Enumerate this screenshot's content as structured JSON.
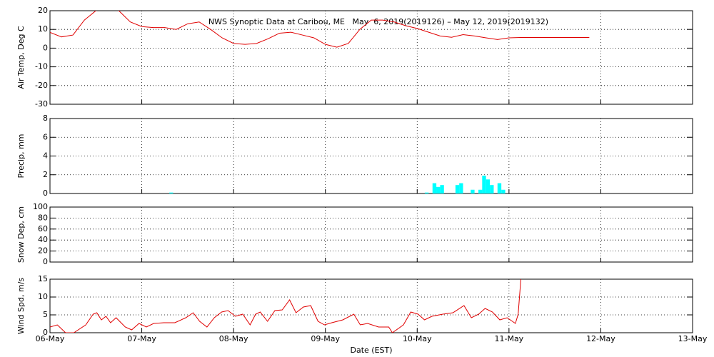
{
  "chart_data": [
    {
      "type": "line",
      "title": "NWS Synoptic Data at Caribou, ME   May  6, 2019(2019126) – May 12, 2019(2019132)",
      "y_label": "Air Temp, Deg C",
      "xlim": [
        0,
        7
      ],
      "ylim": [
        -30,
        20
      ],
      "yticks": [
        -30,
        -20,
        -10,
        0,
        10,
        20
      ],
      "grid": true,
      "series": [
        {
          "color": "#e00000",
          "x": [
            0,
            0.125,
            0.25,
            0.375,
            0.5,
            0.625,
            0.75,
            0.875,
            1,
            1.125,
            1.25,
            1.375,
            1.5,
            1.625,
            1.75,
            1.875,
            2,
            2.125,
            2.25,
            2.375,
            2.5,
            2.625,
            2.75,
            2.875,
            3,
            3.125,
            3.25,
            3.375,
            3.5,
            3.625,
            3.75,
            3.875,
            4,
            4.125,
            4.25,
            4.375,
            4.5,
            4.625,
            4.75,
            4.875,
            5,
            5.125,
            5.25,
            5.375,
            5.5,
            5.625,
            5.75,
            5.875
          ],
          "values": [
            8.4,
            6,
            7,
            15,
            20,
            22,
            20,
            14,
            11.5,
            11,
            11,
            10,
            13,
            14,
            10,
            5.5,
            2.5,
            2,
            2.5,
            5,
            8,
            8.5,
            7,
            5.5,
            2,
            0.5,
            2.5,
            10,
            15,
            15,
            14,
            12,
            10.5,
            8.5,
            6.5,
            5.8,
            7.2,
            6.5,
            5.5,
            4.6,
            5.5,
            5.7,
            5.7,
            5.7,
            5.7,
            5.7,
            5.7,
            5.7
          ]
        }
      ]
    },
    {
      "type": "bar",
      "y_label": "Precip, mm",
      "xlim": [
        0,
        7
      ],
      "ylim": [
        0,
        8
      ],
      "yticks": [
        0,
        2,
        4,
        6,
        8
      ],
      "grid": true,
      "bar_width": 0.0417,
      "series": [
        {
          "color": "#00ffff",
          "x": [
            1.3,
            4.083,
            4.167,
            4.208,
            4.25,
            4.417,
            4.458,
            4.583,
            4.667,
            4.708,
            4.75,
            4.792,
            4.875,
            4.917
          ],
          "values": [
            0.1,
            0.1,
            1.1,
            0.7,
            0.9,
            0.9,
            1.1,
            0.4,
            0.4,
            1.9,
            1.5,
            0.9,
            1.1,
            0.4
          ]
        }
      ]
    },
    {
      "type": "line",
      "y_label": "Snow Dep, cm",
      "xlim": [
        0,
        7
      ],
      "ylim": [
        0,
        100
      ],
      "yticks": [
        0,
        20,
        40,
        60,
        80,
        100
      ],
      "grid": true,
      "series": []
    },
    {
      "type": "line",
      "y_label": "Wind Spd, m/s",
      "x_label": "Date (EST)",
      "xlim": [
        0,
        7
      ],
      "ylim": [
        0,
        15
      ],
      "yticks": [
        0,
        5,
        10,
        15
      ],
      "grid": true,
      "xticks": [
        {
          "value": 0,
          "label": "06-May"
        },
        {
          "value": 1,
          "label": "07-May"
        },
        {
          "value": 2,
          "label": "08-May"
        },
        {
          "value": 3,
          "label": "09-May"
        },
        {
          "value": 4,
          "label": "10-May"
        },
        {
          "value": 5,
          "label": "11-May"
        },
        {
          "value": 6,
          "label": "12-May"
        },
        {
          "value": 7,
          "label": "13-May"
        }
      ],
      "series": [
        {
          "color": "#e00000",
          "x": [
            0,
            0.08,
            0.17,
            0.26,
            0.39,
            0.47,
            0.51,
            0.56,
            0.61,
            0.66,
            0.72,
            0.82,
            0.89,
            0.97,
            1.05,
            1.13,
            1.24,
            1.36,
            1.48,
            1.56,
            1.63,
            1.71,
            1.79,
            1.87,
            1.94,
            2.02,
            2.1,
            2.18,
            2.24,
            2.29,
            2.37,
            2.45,
            2.53,
            2.61,
            2.68,
            2.76,
            2.84,
            2.92,
            2.99,
            3.07,
            3.19,
            3.31,
            3.38,
            3.46,
            3.58,
            3.69,
            3.73,
            3.85,
            3.93,
            4.01,
            4.08,
            4.16,
            4.28,
            4.39,
            4.51,
            4.59,
            4.67,
            4.74,
            4.82,
            4.9,
            4.98,
            5.07,
            5.1,
            5.13
          ],
          "values": [
            1.6,
            2.2,
            0,
            0,
            2.2,
            5.2,
            5.6,
            3.6,
            4.6,
            2.8,
            4.2,
            1.6,
            0.8,
            2.6,
            1.6,
            2.6,
            2.8,
            2.8,
            4.2,
            5.6,
            3.2,
            1.6,
            4.2,
            5.8,
            6.2,
            4.6,
            5.2,
            2.2,
            5.2,
            5.8,
            3.2,
            6.2,
            6.4,
            9.2,
            5.6,
            7.2,
            7.6,
            3.2,
            2.2,
            2.8,
            3.6,
            5.2,
            2.2,
            2.6,
            1.6,
            1.6,
            0,
            2.2,
            5.8,
            5.2,
            3.6,
            4.6,
            5.2,
            5.6,
            7.6,
            4.2,
            5.2,
            6.8,
            5.8,
            3.6,
            4.2,
            2.6,
            5.2,
            15.2
          ]
        }
      ]
    }
  ]
}
